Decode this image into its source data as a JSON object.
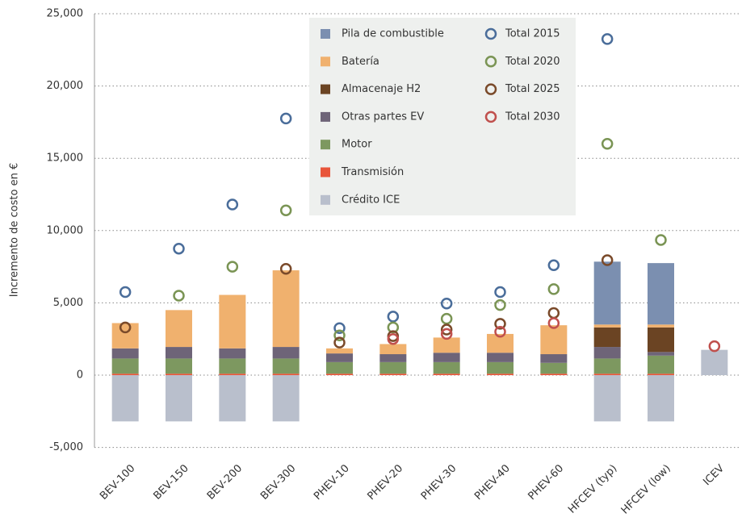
{
  "chart_data": {
    "type": "bar",
    "stacked": true,
    "grid": true,
    "legend": "top",
    "ylabel": "Incremento de costo en €",
    "ylim": [
      -5000,
      25000
    ],
    "yticks": [
      {
        "value": -5000,
        "label": "-5,000"
      },
      0,
      {
        "value": 5000,
        "label": "5,000"
      },
      {
        "value": 10000,
        "label": "10,000"
      },
      {
        "value": 15000,
        "label": "15,000"
      },
      {
        "value": 20000,
        "label": "20,000"
      },
      {
        "value": 25000,
        "label": "25,000"
      }
    ],
    "categories": [
      "BEV-100",
      "BEV-150",
      "BEV-200",
      "BEV-300",
      "PHEV-10",
      "PHEV-20",
      "PHEV-30",
      "PHEV-40",
      "PHEV-60",
      "HFCEV (typ)",
      "HFCEV (low)",
      "ICEV"
    ],
    "series": [
      {
        "name": "Pila de combustible",
        "color": "#7b8fb0",
        "values": [
          0,
          0,
          0,
          0,
          0,
          0,
          0,
          0,
          0,
          4350,
          4250,
          0
        ]
      },
      {
        "name": "Batería",
        "color": "#f0b16e",
        "values": [
          1750,
          2550,
          3700,
          5300,
          350,
          700,
          1050,
          1300,
          2000,
          200,
          200,
          0
        ]
      },
      {
        "name": "Almacenaje H2",
        "color": "#6b4423",
        "values": [
          0,
          0,
          0,
          0,
          0,
          0,
          0,
          0,
          0,
          1350,
          1700,
          0
        ]
      },
      {
        "name": "Otras partes EV",
        "color": "#6e6478",
        "values": [
          700,
          800,
          700,
          800,
          600,
          550,
          650,
          650,
          600,
          800,
          250,
          0
        ]
      },
      {
        "name": "Motor",
        "color": "#7d9860",
        "values": [
          1050,
          1050,
          1050,
          1050,
          800,
          800,
          800,
          800,
          750,
          1050,
          1250,
          0
        ]
      },
      {
        "name": "Transmisión",
        "color": "#e8553a",
        "values": [
          100,
          100,
          100,
          100,
          100,
          100,
          100,
          100,
          100,
          100,
          100,
          0
        ]
      },
      {
        "name": "Crédito ICE",
        "color": "#b9bfcc",
        "values": [
          -3200,
          -3200,
          -3200,
          -3200,
          0,
          0,
          0,
          0,
          0,
          -3200,
          -3200,
          1750
        ]
      }
    ],
    "totals": [
      {
        "name": "Total 2015",
        "color": "#4a6d9a",
        "values": [
          5750,
          8750,
          11800,
          17750,
          3250,
          4050,
          4950,
          5750,
          7600,
          23250,
          null,
          null
        ]
      },
      {
        "name": "Total 2020",
        "color": "#7a9454",
        "values": [
          null,
          5500,
          7500,
          11400,
          2750,
          3300,
          3900,
          4850,
          5950,
          16000,
          9350,
          null
        ]
      },
      {
        "name": "Total 2025",
        "color": "#7a4a2a",
        "values": [
          3300,
          null,
          null,
          7350,
          2250,
          2700,
          3150,
          3550,
          4300,
          7950,
          null,
          null
        ]
      },
      {
        "name": "Total 2030",
        "color": "#c0504d",
        "values": [
          null,
          null,
          null,
          null,
          null,
          2500,
          2850,
          3000,
          3600,
          null,
          null,
          2000
        ]
      }
    ]
  }
}
